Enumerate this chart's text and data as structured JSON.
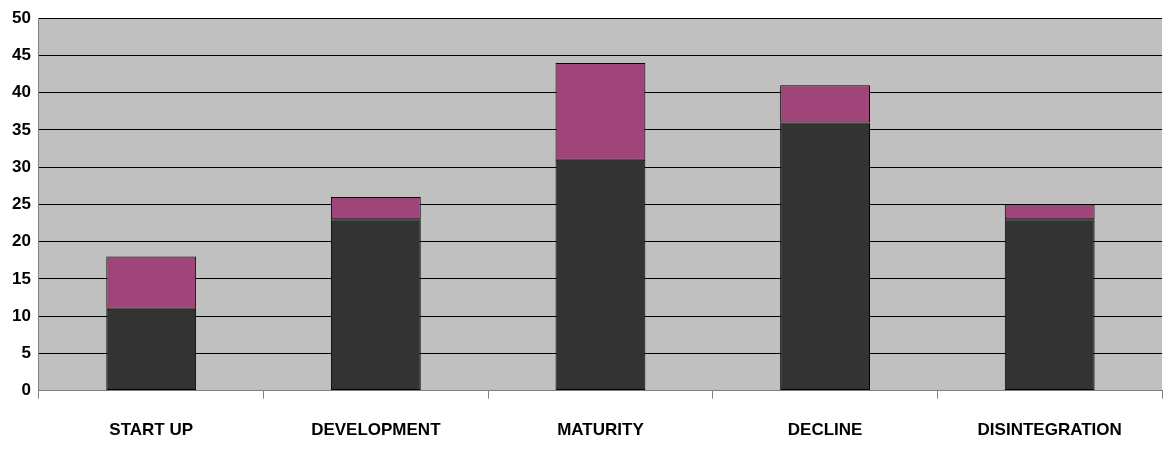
{
  "chart_data": {
    "type": "bar",
    "stacked": true,
    "categories": [
      "START UP",
      "DEVELOPMENT",
      "MATURITY",
      "DECLINE",
      "DISINTEGRATION"
    ],
    "series": [
      {
        "color": "#333333",
        "values": [
          11,
          23,
          31,
          36,
          23
        ]
      },
      {
        "color": "#a0457a",
        "values": [
          7,
          3,
          13,
          5,
          2
        ]
      }
    ],
    "ylim": [
      0,
      50
    ],
    "yticks": [
      0,
      5,
      10,
      15,
      20,
      25,
      30,
      35,
      40,
      45,
      50
    ],
    "grid": "y",
    "legend": false
  }
}
